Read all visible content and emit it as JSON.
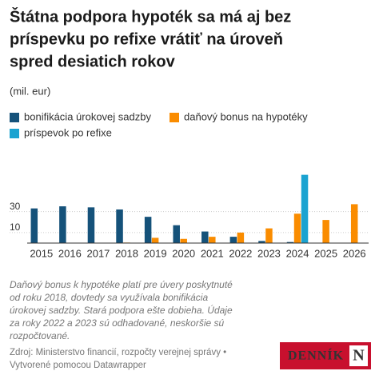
{
  "chart_data": {
    "type": "bar",
    "title": [
      "Štátna podpora hypoték sa má aj bez",
      "príspevku po refixe vrátiť na úroveň",
      "spred desiatich rokov"
    ],
    "subtitle": "(mil. eur)",
    "categories": [
      "2015",
      "2016",
      "2017",
      "2018",
      "2019",
      "2020",
      "2021",
      "2022",
      "2023",
      "2024",
      "2025",
      "2026"
    ],
    "series": [
      {
        "name": "bonifikácia úrokovej sadzby",
        "color": "#15527a",
        "values": [
          33,
          35,
          34,
          32,
          25,
          17,
          11,
          6,
          2,
          1,
          null,
          null
        ]
      },
      {
        "name": "daňový bonus na hypotéky",
        "color": "#fa8c00",
        "values": [
          null,
          null,
          null,
          0.5,
          5,
          4,
          6,
          10,
          14,
          28,
          22,
          37
        ]
      },
      {
        "name": "príspevok po refixe",
        "color": "#1aa3d1",
        "values": [
          null,
          null,
          null,
          null,
          null,
          null,
          null,
          null,
          null,
          65,
          null,
          null
        ]
      }
    ],
    "ylim": [
      0,
      67
    ],
    "yticks": [
      10,
      30
    ],
    "grid": true,
    "note": [
      "Daňový bonus k hypotéke platí pre úvery poskytnuté",
      "od roku 2018, dovtedy sa využívala bonifikácia",
      "úrokovej sadzby. Stará podpora ešte dobieha. Údaje",
      "za roky 2022 a 2023 sú odhadované, neskoršie sú",
      "rozpočtované."
    ],
    "source": [
      "Zdroj: Ministerstvo financií, rozpočty verejnej správy •",
      "Vytvorené pomocou Datawrapper"
    ],
    "logo": [
      "DENNÍK",
      "N"
    ]
  }
}
